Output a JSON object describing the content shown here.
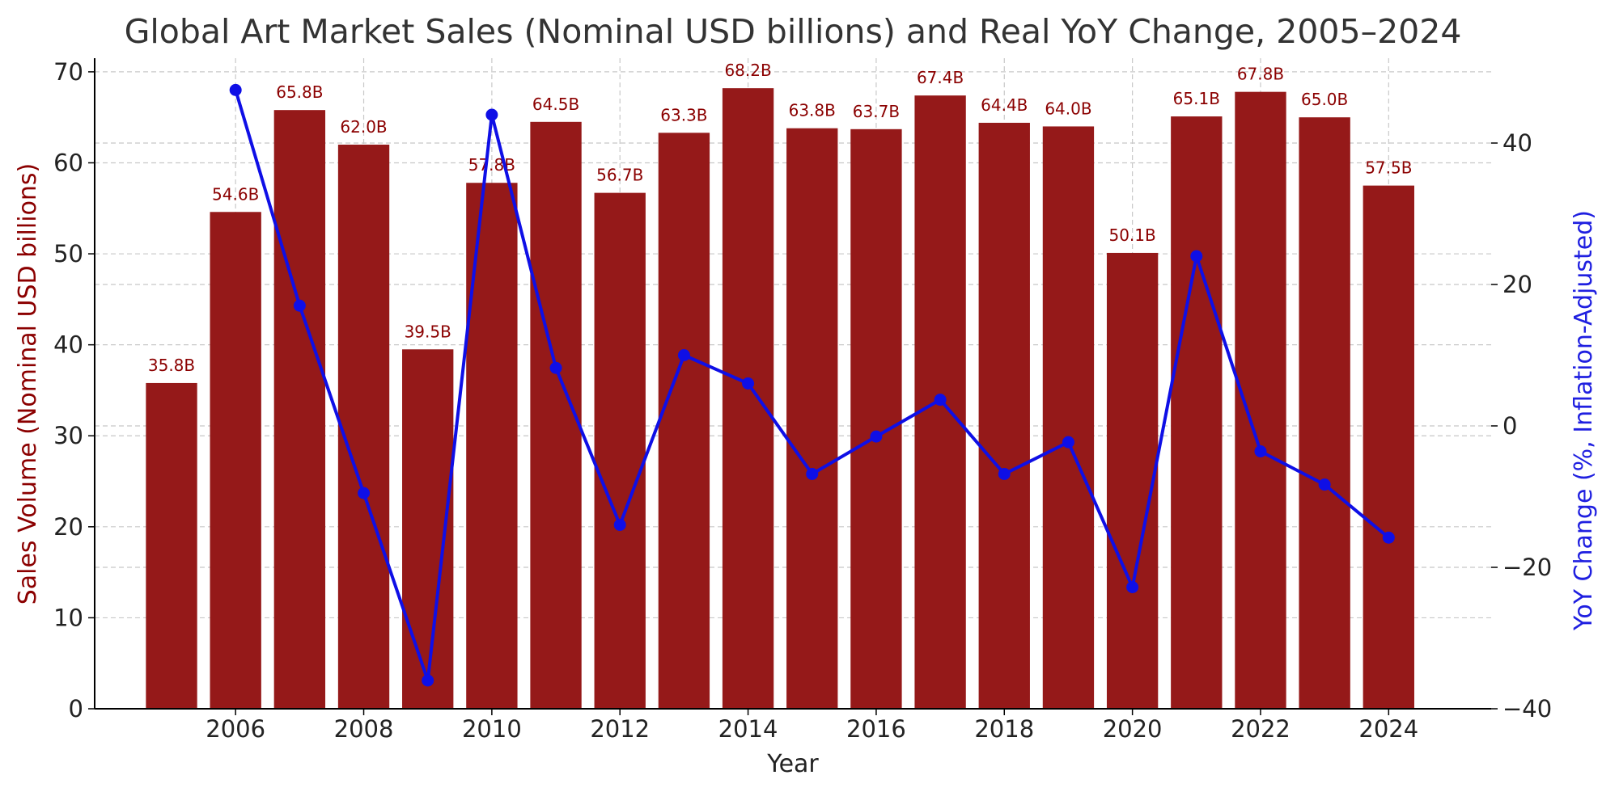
{
  "chart_data": {
    "type": "bar",
    "title": "Global Art Market Sales (Nominal USD billions) and Real YoY Change, 2005–2024",
    "xlabel": "Year",
    "ylabel": "Sales Volume (Nominal USD billions)",
    "y2label": "YoY Change (%, Inflation-Adjusted)",
    "x": [
      2005,
      2006,
      2007,
      2008,
      2009,
      2010,
      2011,
      2012,
      2013,
      2014,
      2015,
      2016,
      2017,
      2018,
      2019,
      2020,
      2021,
      2022,
      2023,
      2024
    ],
    "xticks": [
      "2006",
      "2008",
      "2010",
      "2012",
      "2014",
      "2016",
      "2018",
      "2020",
      "2022",
      "2024"
    ],
    "ylim": [
      0,
      71.5
    ],
    "yticks": [
      "0",
      "10",
      "20",
      "30",
      "40",
      "50",
      "60",
      "70"
    ],
    "y2lim": [
      -40,
      52
    ],
    "y2ticks": [
      "−40",
      "−20",
      "0",
      "20",
      "40"
    ],
    "grid": true,
    "series": [
      {
        "type": "bar",
        "color": "#951919",
        "axis": "left",
        "values": [
          35.8,
          54.6,
          65.8,
          62.0,
          39.5,
          57.8,
          64.5,
          56.7,
          63.3,
          68.2,
          63.8,
          63.7,
          67.4,
          64.4,
          64.0,
          50.1,
          65.1,
          67.8,
          65.0,
          57.5
        ],
        "labels": [
          "35.8B",
          "54.6B",
          "65.8B",
          "62.0B",
          "39.5B",
          "57.8B",
          "64.5B",
          "56.7B",
          "63.3B",
          "68.2B",
          "63.8B",
          "63.7B",
          "67.4B",
          "64.4B",
          "64.0B",
          "50.1B",
          "65.1B",
          "67.8B",
          "65.0B",
          "57.5B"
        ]
      },
      {
        "type": "line",
        "color": "#0f0fe6",
        "axis": "right",
        "x": [
          2006,
          2007,
          2008,
          2009,
          2010,
          2011,
          2012,
          2013,
          2014,
          2015,
          2016,
          2017,
          2018,
          2019,
          2020,
          2021,
          2022,
          2023,
          2024
        ],
        "values": [
          47.5,
          17.0,
          -9.5,
          -36.0,
          44.0,
          8.2,
          -14.0,
          10.0,
          6.0,
          -6.8,
          -1.5,
          3.7,
          -6.8,
          -2.3,
          -22.8,
          24.0,
          -3.6,
          -8.3,
          -15.8
        ]
      }
    ],
    "colors": {
      "left_axis_label": "#8b0000",
      "right_axis_label": "#1f1fe0"
    }
  }
}
